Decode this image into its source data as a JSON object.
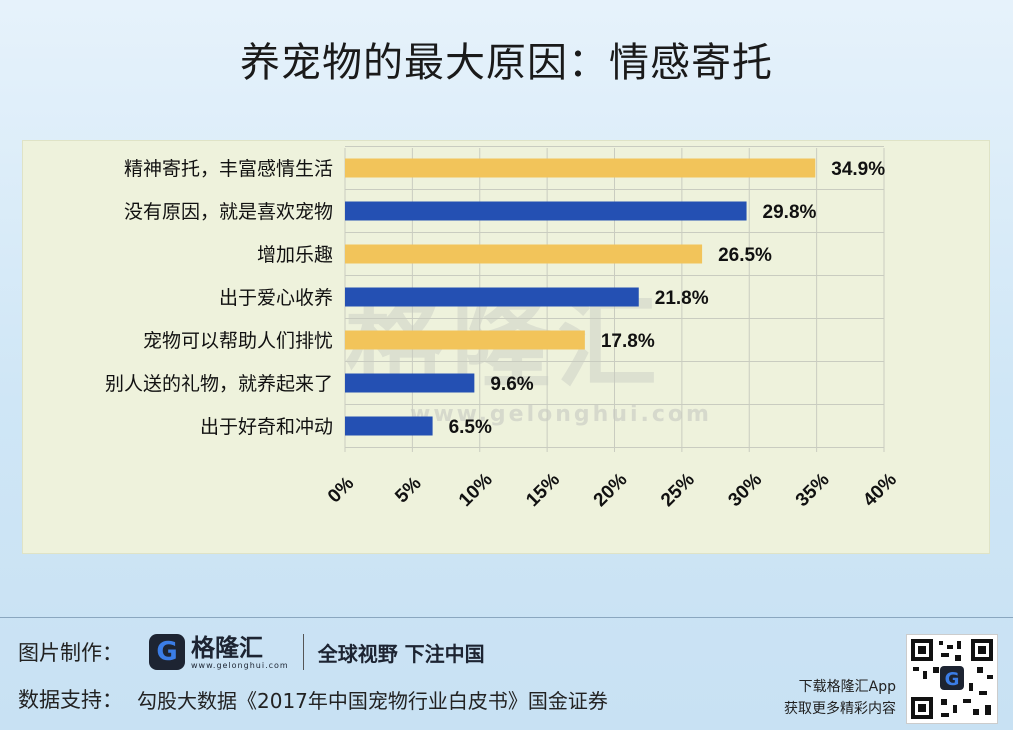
{
  "title": "养宠物的最大原因：情感寄托",
  "chart_data": {
    "type": "bar",
    "orientation": "horizontal",
    "categories": [
      "精神寄托，丰富感情生活",
      "没有原因，就是喜欢宠物",
      "增加乐趣",
      "出于爱心收养",
      "宠物可以帮助人们排忧",
      "别人送的礼物，就养起来了",
      "出于好奇和冲动"
    ],
    "values": [
      34.9,
      29.8,
      26.5,
      21.8,
      17.8,
      9.6,
      6.5
    ],
    "value_labels": [
      "34.9%",
      "29.8%",
      "26.5%",
      "21.8%",
      "17.8%",
      "9.6%",
      "6.5%"
    ],
    "bar_colors": [
      "#f2c45a",
      "#2450b3",
      "#f2c45a",
      "#2450b3",
      "#f2c45a",
      "#2450b3",
      "#2450b3"
    ],
    "xlim": [
      0,
      40
    ],
    "xticks": [
      0,
      5,
      10,
      15,
      20,
      25,
      30,
      35,
      40
    ],
    "xtick_labels": [
      "0%",
      "5%",
      "10%",
      "15%",
      "20%",
      "25%",
      "30%",
      "35%",
      "40%"
    ],
    "grid": true
  },
  "watermark": {
    "text": "格隆汇",
    "url": "www.gelonghui.com"
  },
  "footer": {
    "made_by_label": "图片制作：",
    "logo_name": "格隆汇",
    "logo_url": "www.gelonghui.com",
    "slogan": "全球视野 下注中国",
    "source_label": "数据支持：",
    "source_text": "勾股大数据《2017年中国宠物行业白皮书》国金证券",
    "app_line1": "下载格隆汇App",
    "app_line2": "获取更多精彩内容"
  },
  "colors": {
    "yellow": "#f2c45a",
    "blue": "#2450b3",
    "panel": "#eef2dc"
  }
}
